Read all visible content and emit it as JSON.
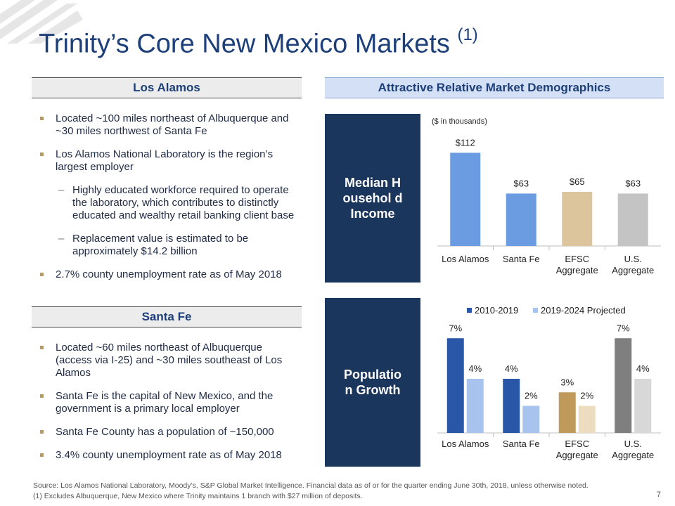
{
  "title": {
    "main": "Trinity’s Core New Mexico Markets",
    "note": "(1)"
  },
  "los_alamos": {
    "heading": "Los Alamos",
    "bullets": [
      {
        "level": 1,
        "text": "Located ~100 miles northeast of Albuquerque and ~30 miles northwest of Santa Fe"
      },
      {
        "level": 1,
        "text": "Los Alamos National Laboratory is the region’s largest employer"
      },
      {
        "level": 2,
        "text": "Highly educated workforce required to operate the laboratory, which contributes to distinctly educated and wealthy retail banking client base"
      },
      {
        "level": 2,
        "text": "Replacement value is estimated to be approximately $14.2 billion"
      },
      {
        "level": 1,
        "text": "2.7% county unemployment rate as of May 2018"
      }
    ]
  },
  "santa_fe": {
    "heading": "Santa Fe",
    "bullets": [
      {
        "level": 1,
        "text": "Located ~60 miles northeast of Albuquerque (access via I-25) and ~30 miles southeast of Los Alamos"
      },
      {
        "level": 1,
        "text": "Santa Fe is the capital of New Mexico, and the government is a primary local employer"
      },
      {
        "level": 1,
        "text": "Santa Fe County has a population of ~150,000"
      },
      {
        "level": 1,
        "text": "3.4% county unemployment rate as of May 2018"
      }
    ]
  },
  "demographics": {
    "heading": "Attractive Relative Market Demographics",
    "income_label": "Median Househol d Income",
    "growth_label": "Populatio n Growth"
  },
  "chart_data": [
    {
      "type": "bar",
      "note": "($ in thousands)",
      "categories": [
        "Los Alamos",
        "Santa Fe",
        "EFSC Aggregate",
        "U.S. Aggregate"
      ],
      "values": [
        112,
        63,
        65,
        63
      ],
      "value_labels": [
        "$112",
        "$63",
        "$65",
        "$63"
      ],
      "colors": [
        "#6b9be0",
        "#6b9be0",
        "#dcc49d",
        "#c4c4c4"
      ],
      "ylim": [
        0,
        125
      ]
    },
    {
      "type": "bar",
      "categories": [
        "Los Alamos",
        "Santa Fe",
        "EFSC Aggregate",
        "U.S. Aggregate"
      ],
      "series": [
        {
          "name": "2010-2019",
          "values": [
            7,
            4,
            3,
            7
          ],
          "labels": [
            "7%",
            "4%",
            "3%",
            "7%"
          ],
          "colors": [
            "#2a56a8",
            "#2a56a8",
            "#c09a5b",
            "#7f7f7f"
          ]
        },
        {
          "name": "2019-2024 Projected",
          "values": [
            4,
            2,
            2,
            4
          ],
          "labels": [
            "4%",
            "2%",
            "2%",
            "4%"
          ],
          "colors": [
            "#a8c4ee",
            "#a8c4ee",
            "#ecdcc0",
            "#d8d8d8"
          ]
        }
      ],
      "legend_colors": [
        "#2a56a8",
        "#a8c4ee"
      ],
      "ylim": [
        0,
        8
      ]
    }
  ],
  "footnotes": {
    "source": "Source: Los Alamos National Laboratory, Moody’s, S&P Global Market Intelligence. Financial data as of or for the quarter ending June 30th, 2018, unless otherwise noted.",
    "note1": "(1)    Excludes Albuquerque, New Mexico where Trinity maintains 1 branch with $27 million of deposits."
  },
  "page_number": "7"
}
